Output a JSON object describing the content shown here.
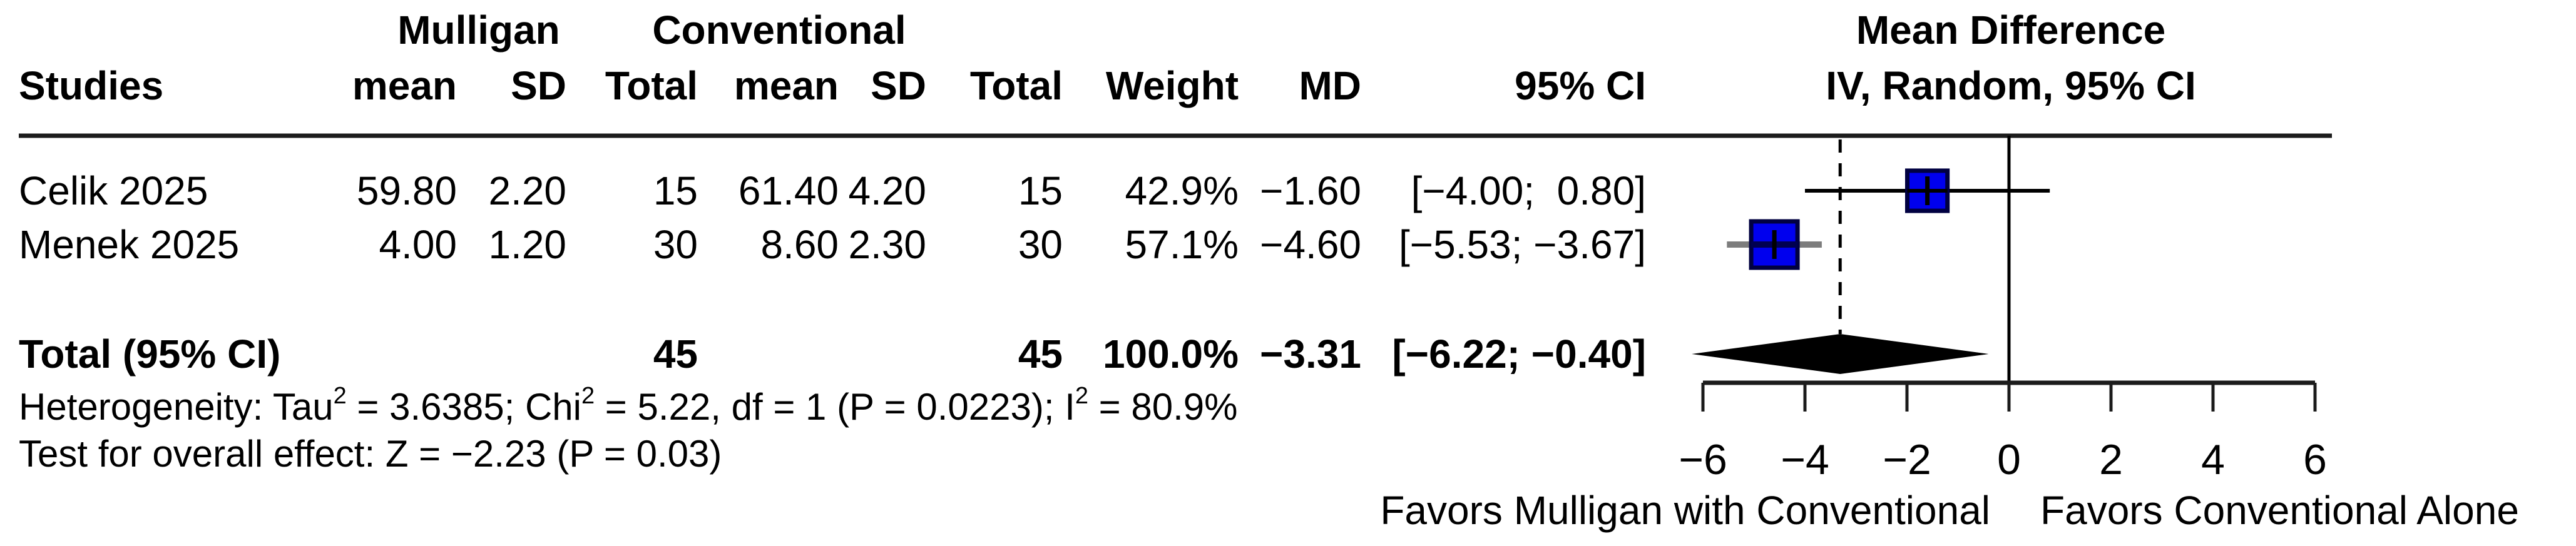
{
  "header": {
    "studies_label": "Studies",
    "group1": "Mulligan",
    "group2": "Conventional",
    "effect_title": "Mean Difference",
    "effect_subtitle": "IV, Random, 95% CI",
    "col_mean1": "mean",
    "col_sd1": "SD",
    "col_total1": "Total",
    "col_mean2": "mean",
    "col_sd2": "SD",
    "col_total2": "Total",
    "col_weight": "Weight",
    "col_md": "MD",
    "col_ci": "95% CI"
  },
  "studies": [
    {
      "name": "Celik 2025",
      "m_mean": "59.80",
      "m_sd": "2.20",
      "m_total": "15",
      "c_mean": "61.40",
      "c_sd": "4.20",
      "c_total": "15",
      "weight": "42.9%",
      "md": "−1.60",
      "ci": "[−4.00;  0.80]"
    },
    {
      "name": "Menek 2025",
      "m_mean": "4.00",
      "m_sd": "1.20",
      "m_total": "30",
      "c_mean": "8.60",
      "c_sd": "2.30",
      "c_total": "30",
      "weight": "57.1%",
      "md": "−4.60",
      "ci": "[−5.53; −3.67]"
    }
  ],
  "total_row": {
    "label": "Total (95% CI)",
    "m_total": "45",
    "c_total": "45",
    "weight": "100.0%",
    "md": "−3.31",
    "ci": "[−6.22; −0.40]"
  },
  "footnotes": {
    "het_p1": "Heterogeneity: Tau",
    "het_s1": "2",
    "het_p2": " = 3.6385; Chi",
    "het_s2": "2",
    "het_p3": " = 5.22, df = 1 (P = 0.0223); I",
    "het_s3": "2",
    "het_p4": " = 80.9%",
    "overall_test": "Test for overall effect: Z = −2.23 (P = 0.03)"
  },
  "favors": {
    "left": "Favors Mulligan with Conventional",
    "right": "Favors Conventional Alone"
  },
  "chart_data": {
    "type": "forest",
    "effect_measure": "Mean Difference",
    "model": "IV, Random, 95% CI",
    "axis": {
      "xlim": [
        -6,
        6
      ],
      "ticks": [
        -6,
        -4,
        -2,
        0,
        2,
        4,
        6
      ],
      "tick_labels": [
        "−6",
        "−4",
        "−2",
        "0",
        "2",
        "4",
        "6"
      ],
      "null_line": 0
    },
    "studies": [
      {
        "name": "Celik 2025",
        "md": -1.6,
        "ci_lo": -4.0,
        "ci_hi": 0.8,
        "weight_pct": 42.9
      },
      {
        "name": "Menek 2025",
        "md": -4.6,
        "ci_lo": -5.53,
        "ci_hi": -3.67,
        "weight_pct": 57.1
      }
    ],
    "overall": {
      "md": -3.31,
      "ci_lo": -6.22,
      "ci_hi": -0.4,
      "weight_pct": 100.0
    },
    "heterogeneity": {
      "tau2": 3.6385,
      "chi2": 5.22,
      "df": 1,
      "p": 0.0223,
      "i2_pct": 80.9
    },
    "overall_effect_test": {
      "z": -2.23,
      "p": 0.03
    },
    "colors": {
      "square_fill": "#0000ee",
      "square_border": "#000041",
      "ci_line_study1": "#000000",
      "ci_line_study2": "#7d7d7d",
      "inner_band_study1": "#000000",
      "inner_band_study2": "#000050",
      "diamond": "#000000",
      "lines": "#1c1c1c"
    }
  }
}
